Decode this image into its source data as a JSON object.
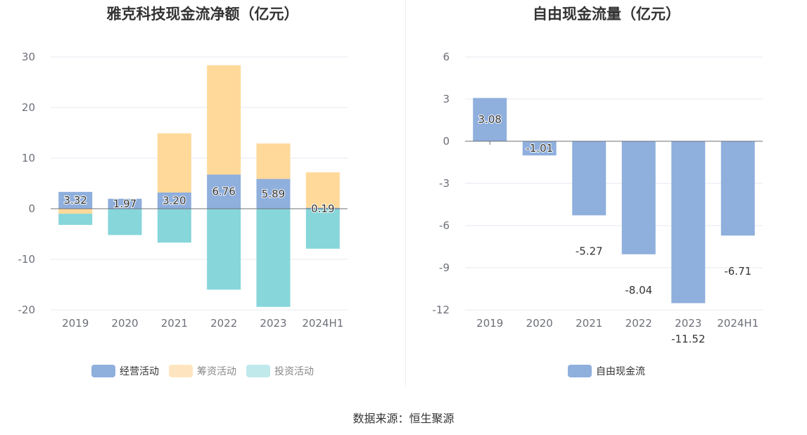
{
  "chart_data": [
    {
      "type": "bar",
      "stacked": true,
      "title": "雅克科技现金流净额（亿元）",
      "categories": [
        "2019",
        "2020",
        "2021",
        "2022",
        "2023",
        "2024H1"
      ],
      "ylim": [
        -20,
        30
      ],
      "yticks": [
        "30",
        "20",
        "10",
        "0",
        "-10",
        "-20"
      ],
      "yticks_values": [
        30,
        20,
        10,
        0,
        -10,
        -20
      ],
      "grid": true,
      "legend_position": "bottom",
      "series": [
        {
          "name": "经营活动",
          "color": "#8fafdd",
          "values": [
            3.32,
            1.97,
            3.2,
            6.76,
            5.89,
            0.19
          ],
          "labels": [
            "3.32",
            "1.97",
            "3.20",
            "6.76",
            "5.89",
            "0.19"
          ]
        },
        {
          "name": "筹资活动",
          "color": "#ffd999",
          "values": [
            -1.0,
            0.0,
            11.7,
            21.6,
            7.0,
            7.0
          ]
        },
        {
          "name": "投资活动",
          "color": "#86d6da",
          "values": [
            -2.2,
            -5.2,
            -6.7,
            -16.0,
            -19.4,
            -7.9
          ]
        }
      ],
      "legend_colors": [
        "#8fafdd",
        "#ffe5bf",
        "#c0e9ec"
      ]
    },
    {
      "type": "bar",
      "title": "自由现金流量（亿元）",
      "categories": [
        "2019",
        "2020",
        "2021",
        "2022",
        "2023",
        "2024H1"
      ],
      "ylim": [
        -12,
        6
      ],
      "yticks": [
        "6",
        "3",
        "0",
        "-3",
        "-6",
        "-9",
        "-12"
      ],
      "yticks_values": [
        6,
        3,
        0,
        -3,
        -6,
        -9,
        -12
      ],
      "grid": true,
      "legend_position": "bottom",
      "series": [
        {
          "name": "自由现金流",
          "color": "#8fafdd",
          "values": [
            3.08,
            -1.01,
            -5.27,
            -8.04,
            -11.52,
            -6.71
          ],
          "labels": [
            "3.08",
            "-1.01",
            "-5.27",
            "-8.04",
            "-11.52",
            "-6.71"
          ]
        }
      ]
    }
  ],
  "footer": {
    "source": "数据来源：恒生聚源"
  }
}
